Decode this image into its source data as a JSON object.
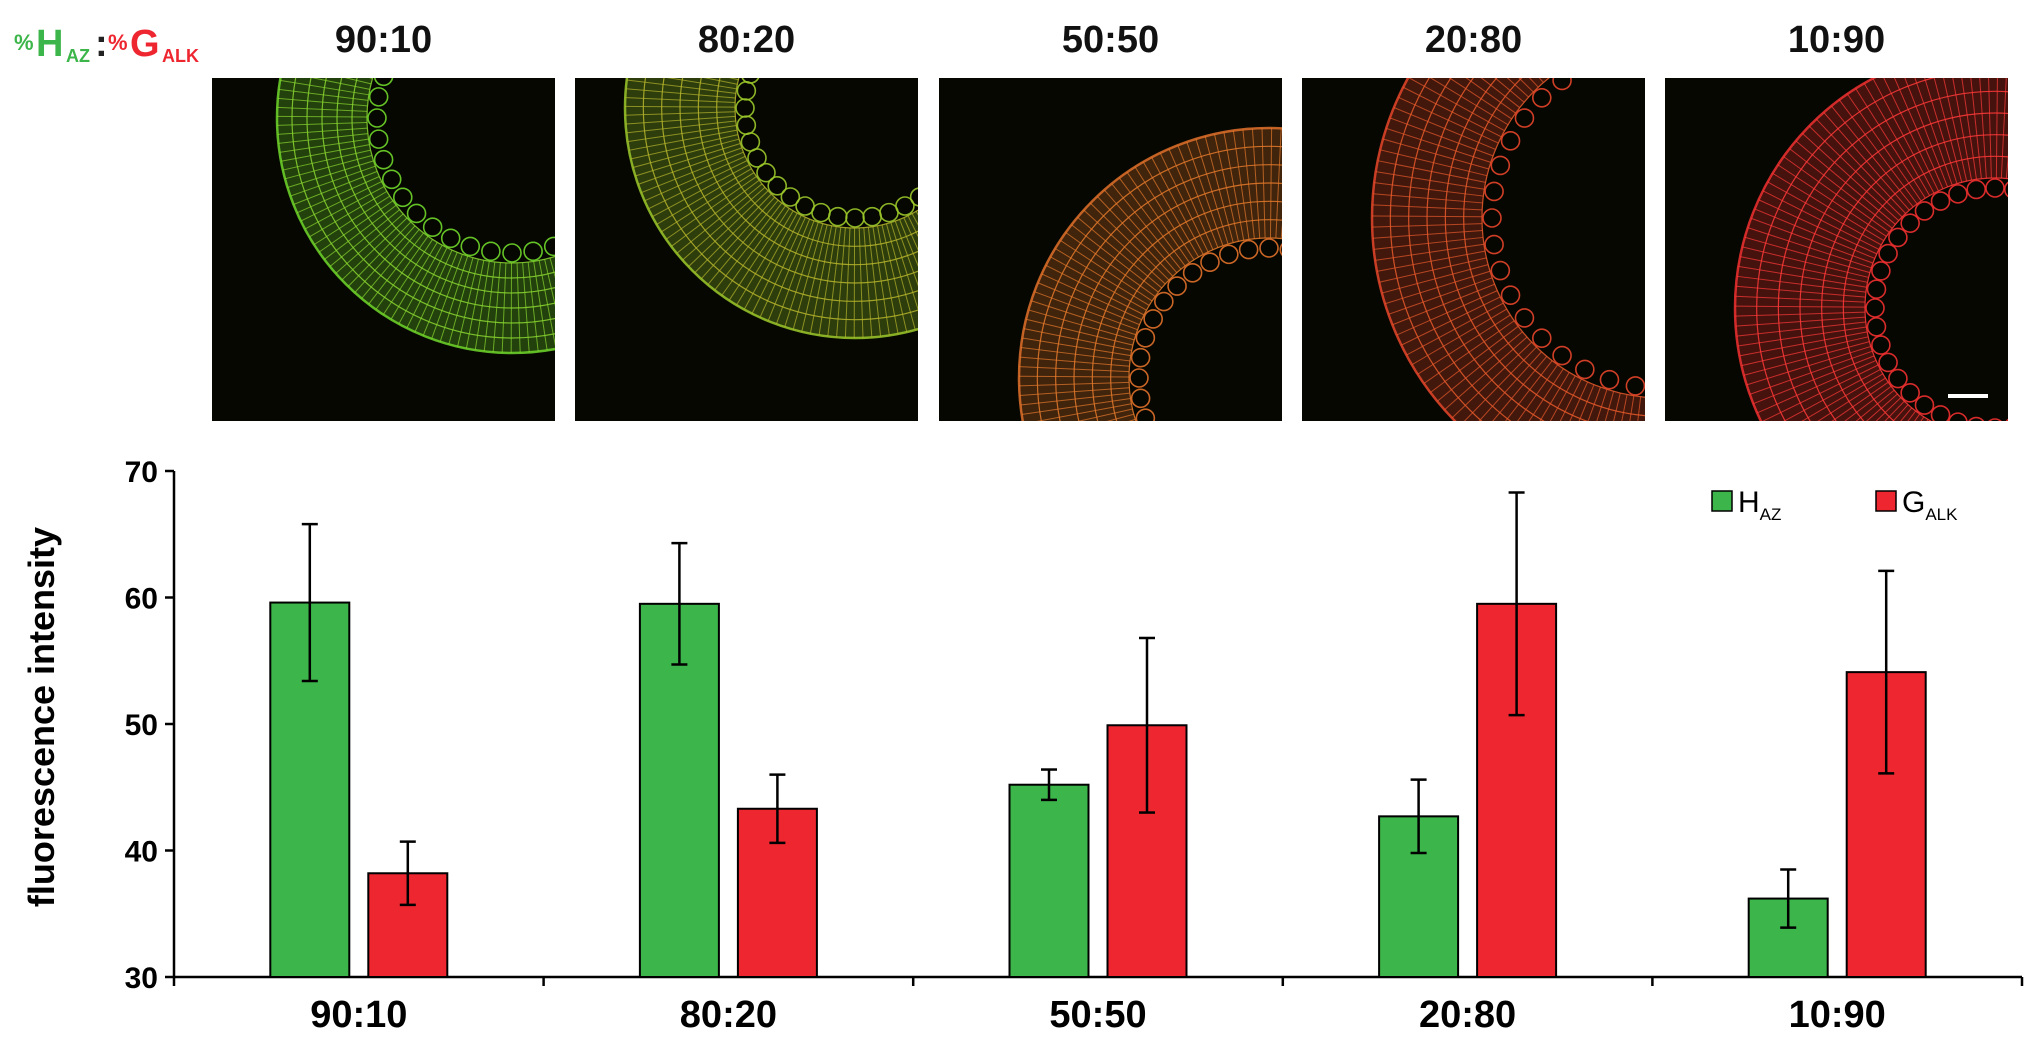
{
  "header": {
    "ratio_key": {
      "h_pct": "%",
      "h_main": "H",
      "h_sub": "AZ",
      "colon": ":",
      "g_pct": "%",
      "g_main": "G",
      "g_sub": "ALK"
    },
    "panels": [
      "90:10",
      "80:20",
      "50:50",
      "20:80",
      "10:90"
    ]
  },
  "colors": {
    "h_az": "#3cb54a",
    "g_alk": "#ee2630",
    "micrograph_bg": "#050700"
  },
  "chart_data": {
    "type": "bar",
    "categories": [
      "90:10",
      "80:20",
      "50:50",
      "20:80",
      "10:90"
    ],
    "series": [
      {
        "name": "HAZ",
        "legend_main": "H",
        "legend_sub": "AZ",
        "values": [
          59.6,
          59.5,
          45.2,
          42.7,
          36.2
        ],
        "error": [
          6.2,
          4.8,
          1.2,
          2.9,
          2.3
        ]
      },
      {
        "name": "GALK",
        "legend_main": "G",
        "legend_sub": "ALK",
        "values": [
          38.2,
          43.3,
          49.9,
          59.5,
          54.1
        ],
        "error": [
          2.5,
          2.7,
          6.9,
          8.8,
          8.0
        ]
      }
    ],
    "ylabel": "fluorescence intensity",
    "xlabel": "",
    "ylim": [
      30,
      70
    ],
    "yticks": [
      30,
      40,
      50,
      60,
      70
    ],
    "legend": "top-right",
    "grid": false
  }
}
